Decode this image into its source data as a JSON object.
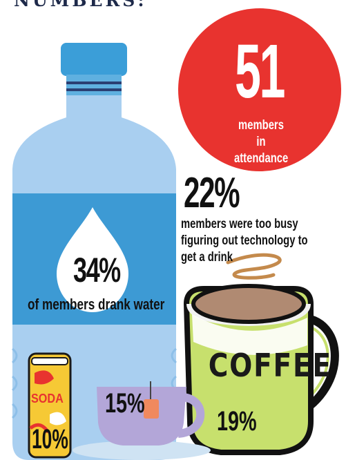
{
  "page": {
    "title": "NUMBERS:"
  },
  "attendance": {
    "number": "51",
    "label": "members in attendance"
  },
  "water": {
    "percent": "34%",
    "label": "of members drank water"
  },
  "busy": {
    "percent": "22%",
    "label": "members were too busy figuring out technology to get a drink"
  },
  "coffee": {
    "word": "COFFEE",
    "percent": "19%"
  },
  "tea": {
    "percent": "15%"
  },
  "soda": {
    "word": "SODA",
    "percent": "10%"
  },
  "colors": {
    "bottle_light": "#a9cff0",
    "bottle_band": "#3d9ad4",
    "cap": "#3b9ed8",
    "circle_red": "#e8332f",
    "coffee_green": "#c7e06d",
    "tea_purple": "#b3a6d8",
    "soda_yellow": "#f6c935"
  }
}
